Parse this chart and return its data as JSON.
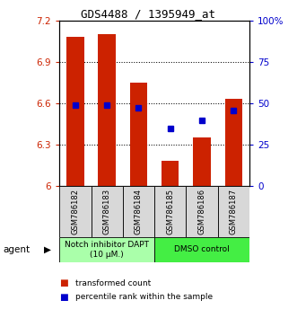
{
  "title": "GDS4488 / 1395949_at",
  "samples": [
    "GSM786182",
    "GSM786183",
    "GSM786184",
    "GSM786185",
    "GSM786186",
    "GSM786187"
  ],
  "bar_values": [
    7.08,
    7.1,
    6.75,
    6.18,
    6.35,
    6.63
  ],
  "bar_base": 6.0,
  "percentile_values": [
    6.585,
    6.585,
    6.565,
    6.415,
    6.475,
    6.545
  ],
  "ylim_left": [
    6.0,
    7.2
  ],
  "ylim_right": [
    0,
    100
  ],
  "yticks_left": [
    6.0,
    6.3,
    6.6,
    6.9,
    7.2
  ],
  "ytick_labels_left": [
    "6",
    "6.3",
    "6.6",
    "6.9",
    "7.2"
  ],
  "yticks_right": [
    0,
    25,
    50,
    75,
    100
  ],
  "ytick_labels_right": [
    "0",
    "25",
    "50",
    "75",
    "100%"
  ],
  "bar_color": "#cc2200",
  "percentile_color": "#0000cc",
  "groups": [
    {
      "label": "Notch inhibitor DAPT\n(10 μM.)",
      "indices": [
        0,
        1,
        2
      ],
      "color": "#aaffaa"
    },
    {
      "label": "DMSO control",
      "indices": [
        3,
        4,
        5
      ],
      "color": "#44ee44"
    }
  ],
  "agent_label": "agent",
  "legend_items": [
    {
      "color": "#cc2200",
      "label": "transformed count"
    },
    {
      "color": "#0000cc",
      "label": "percentile rank within the sample"
    }
  ],
  "bar_width": 0.55,
  "fig_width": 3.31,
  "fig_height": 3.54,
  "dpi": 100
}
